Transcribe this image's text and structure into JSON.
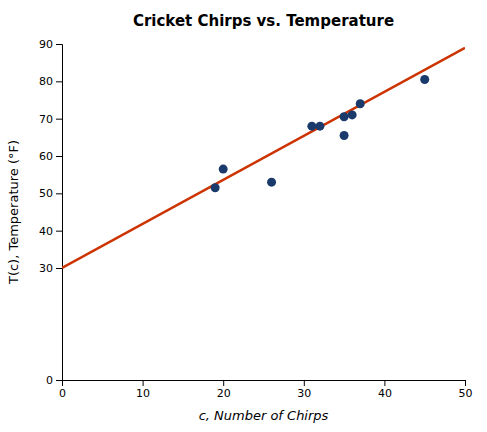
{
  "chart_data": {
    "type": "scatter",
    "title": "Cricket Chirps vs. Temperature",
    "xlabel": "c, Number of Chirps",
    "ylabel": "T(c), Temperature (°F)",
    "series": [
      {
        "type": "scatter",
        "color": "#1a3a6b",
        "x": [
          19,
          20,
          26,
          31,
          32,
          35,
          35,
          36,
          37,
          45
        ],
        "values": [
          51.5,
          56.5,
          53.0,
          68.0,
          68.0,
          65.5,
          70.5,
          71.0,
          74.0,
          80.5
        ]
      },
      {
        "type": "line",
        "color": "#cc3300",
        "x": [
          0,
          50
        ],
        "values": [
          30,
          89
        ]
      }
    ],
    "xlim": [
      0,
      50
    ],
    "ylim": [
      0,
      90
    ],
    "xticks": [
      0,
      10,
      20,
      30,
      40,
      50
    ],
    "yticks": [
      0,
      30,
      40,
      50,
      60,
      70,
      80,
      90
    ],
    "grid": false
  }
}
